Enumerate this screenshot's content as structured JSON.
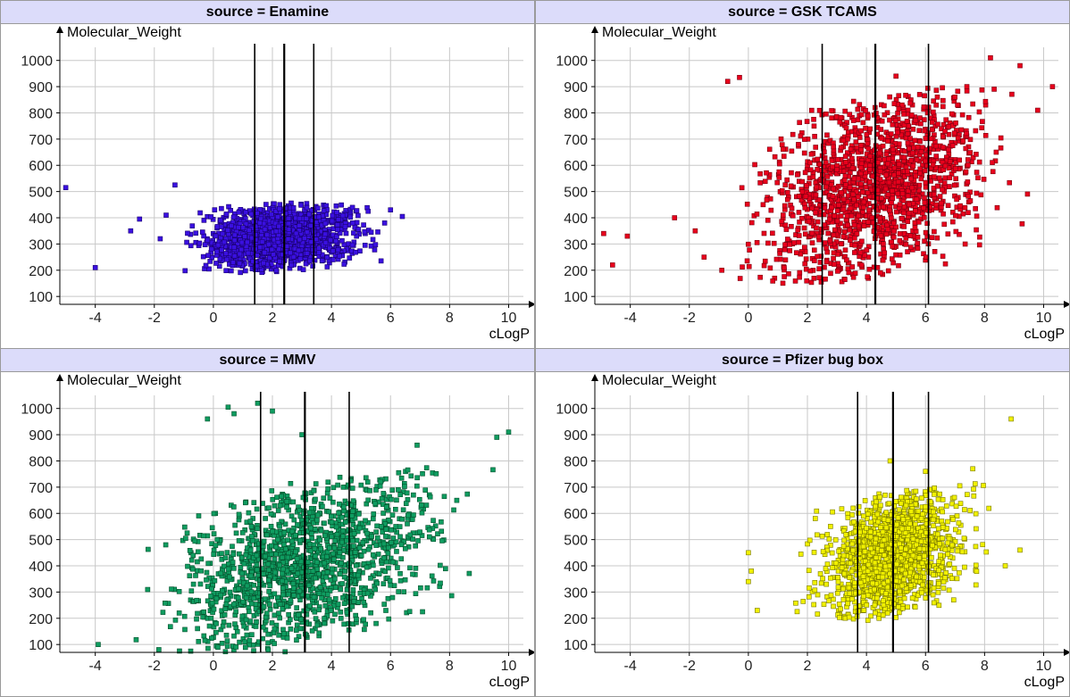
{
  "chart_data": [
    {
      "type": "scatter",
      "title": "source = Enamine",
      "xlabel": "cLogP",
      "ylabel": "Molecular_Weight",
      "xlim": [
        -5.2,
        10.5
      ],
      "ylim": [
        70,
        1050
      ],
      "xticks": [
        -4,
        -2,
        0,
        2,
        4,
        6,
        8,
        10
      ],
      "yticks": [
        100,
        200,
        300,
        400,
        500,
        600,
        700,
        800,
        900,
        1000
      ],
      "color": "#3a10e0",
      "edge": "#1a0070",
      "marker": "square",
      "vlines": [
        1.4,
        2.4,
        3.4
      ],
      "cloud": {
        "x_range": [
          -1.3,
          5.8
        ],
        "x_mean": 2.3,
        "x_sd": 1.2,
        "y_min": 190,
        "y_max": 460,
        "slope": 8
      },
      "outliers": [
        [
          -5.0,
          515
        ],
        [
          -4.0,
          210
        ],
        [
          -2.5,
          395
        ],
        [
          -2.8,
          350
        ],
        [
          -1.3,
          525
        ],
        [
          -1.6,
          410
        ],
        [
          -1.8,
          320
        ],
        [
          6.4,
          405
        ],
        [
          6.0,
          430
        ],
        [
          5.8,
          380
        ]
      ]
    },
    {
      "type": "scatter",
      "title": "source = GSK TCAMS",
      "xlabel": "cLogP",
      "ylabel": "Molecular_Weight",
      "xlim": [
        -5.2,
        10.5
      ],
      "ylim": [
        70,
        1050
      ],
      "xticks": [
        -4,
        -2,
        0,
        2,
        4,
        6,
        8,
        10
      ],
      "yticks": [
        100,
        200,
        300,
        400,
        500,
        600,
        700,
        800,
        900,
        1000
      ],
      "color": "#e8001c",
      "edge": "#7a0010",
      "marker": "square",
      "vlines": [
        2.5,
        4.3,
        6.1
      ],
      "cloud": {
        "x_range": [
          -0.5,
          10.4
        ],
        "x_mean": 4.3,
        "x_sd": 1.7,
        "y_min": 150,
        "y_max": 880,
        "slope": 28
      },
      "outliers": [
        [
          -4.9,
          340
        ],
        [
          -4.6,
          220
        ],
        [
          -4.1,
          330
        ],
        [
          -2.5,
          400
        ],
        [
          -1.8,
          350
        ],
        [
          -1.5,
          250
        ],
        [
          -0.9,
          200
        ],
        [
          -0.7,
          920
        ],
        [
          -0.3,
          935
        ],
        [
          0.5,
          450
        ],
        [
          8.2,
          1010
        ],
        [
          9.2,
          980
        ],
        [
          10.3,
          900
        ],
        [
          9.8,
          810
        ],
        [
          7.4,
          900
        ],
        [
          5.8,
          870
        ],
        [
          6.4,
          860
        ],
        [
          5.0,
          940
        ]
      ]
    },
    {
      "type": "scatter",
      "title": "source = MMV",
      "xlabel": "cLogP",
      "ylabel": "Molecular_Weight",
      "xlim": [
        -5.2,
        10.5
      ],
      "ylim": [
        70,
        1050
      ],
      "xticks": [
        -4,
        -2,
        0,
        2,
        4,
        6,
        8,
        10
      ],
      "yticks": [
        100,
        200,
        300,
        400,
        500,
        600,
        700,
        800,
        900,
        1000
      ],
      "color": "#0f9c60",
      "edge": "#04502c",
      "marker": "square",
      "vlines": [
        1.6,
        3.1,
        4.6
      ],
      "cloud": {
        "x_range": [
          -5.2,
          10.4
        ],
        "x_mean": 3.1,
        "x_sd": 2.0,
        "y_min": 70,
        "y_max": 740,
        "slope": 28
      },
      "outliers": [
        [
          -0.2,
          960
        ],
        [
          0.7,
          980
        ],
        [
          0.5,
          1005
        ],
        [
          1.5,
          1020
        ],
        [
          2.0,
          990
        ],
        [
          3.0,
          900
        ],
        [
          10.0,
          910
        ],
        [
          9.6,
          890
        ],
        [
          6.9,
          860
        ],
        [
          -3.9,
          100
        ]
      ]
    },
    {
      "type": "scatter",
      "title": "source = Pfizer bug box",
      "xlabel": "cLogP",
      "ylabel": "Molecular_Weight",
      "xlim": [
        -5.2,
        10.5
      ],
      "ylim": [
        70,
        1050
      ],
      "xticks": [
        -4,
        -2,
        0,
        2,
        4,
        6,
        8,
        10
      ],
      "yticks": [
        100,
        200,
        300,
        400,
        500,
        600,
        700,
        800,
        900,
        1000
      ],
      "color": "#f0f000",
      "edge": "#7a7a00",
      "marker": "square",
      "vlines": [
        3.7,
        4.9,
        6.1
      ],
      "cloud": {
        "x_range": [
          1.2,
          8.2
        ],
        "x_mean": 4.9,
        "x_sd": 1.1,
        "y_min": 190,
        "y_max": 690,
        "slope": 30
      },
      "outliers": [
        [
          0.0,
          450
        ],
        [
          0.0,
          340
        ],
        [
          0.3,
          230
        ],
        [
          0.1,
          380
        ],
        [
          8.9,
          960
        ],
        [
          9.2,
          460
        ],
        [
          8.7,
          400
        ],
        [
          7.6,
          770
        ],
        [
          4.8,
          800
        ],
        [
          6.0,
          760
        ]
      ]
    }
  ]
}
